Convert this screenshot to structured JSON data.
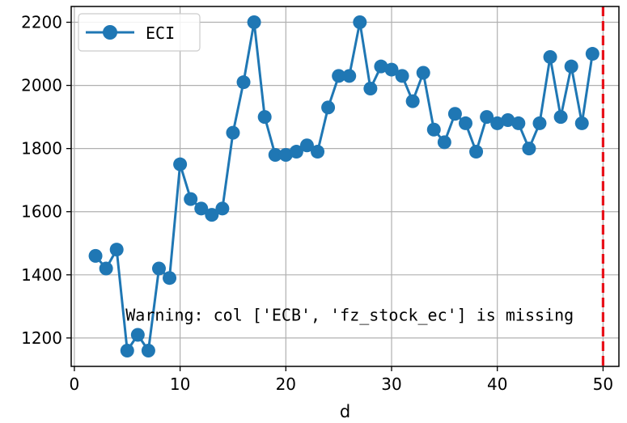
{
  "chart_data": {
    "type": "line",
    "xlabel": "d",
    "ylabel": "",
    "xlim": [
      -0.3,
      51.5
    ],
    "ylim": [
      1110,
      2250
    ],
    "xticks": [
      0,
      10,
      20,
      30,
      40,
      50
    ],
    "yticks": [
      1200,
      1400,
      1600,
      1800,
      2000,
      2200
    ],
    "grid": true,
    "legend_position": "top-left",
    "series": [
      {
        "name": "ECI",
        "color": "#1f77b4",
        "marker": "circle",
        "x": [
          2,
          3,
          4,
          5,
          6,
          7,
          8,
          9,
          10,
          11,
          12,
          13,
          14,
          15,
          16,
          17,
          18,
          19,
          20,
          21,
          22,
          23,
          24,
          25,
          26,
          27,
          28,
          29,
          30,
          31,
          32,
          33,
          34,
          35,
          36,
          37,
          38,
          39,
          40,
          41,
          42,
          43,
          44,
          45,
          46,
          47,
          48,
          49
        ],
        "y": [
          1460,
          1420,
          1480,
          1160,
          1210,
          1160,
          1420,
          1390,
          1750,
          1640,
          1610,
          1590,
          1610,
          1850,
          2010,
          2200,
          1900,
          1780,
          1780,
          1790,
          1810,
          1790,
          1930,
          2030,
          2030,
          2200,
          1990,
          2060,
          2050,
          2030,
          1950,
          2040,
          1860,
          1820,
          1910,
          1880,
          1790,
          1900,
          1880,
          1890,
          1880,
          1800,
          1880,
          2090,
          1900,
          2060,
          1880,
          2100
        ]
      }
    ],
    "vline": {
      "x": 50,
      "color": "#e8111a",
      "style": "dashed"
    },
    "annotation": {
      "text": "Warning: col ['ECB', 'fz_stock_ec'] is missing",
      "x": 5,
      "y": 1240
    }
  }
}
